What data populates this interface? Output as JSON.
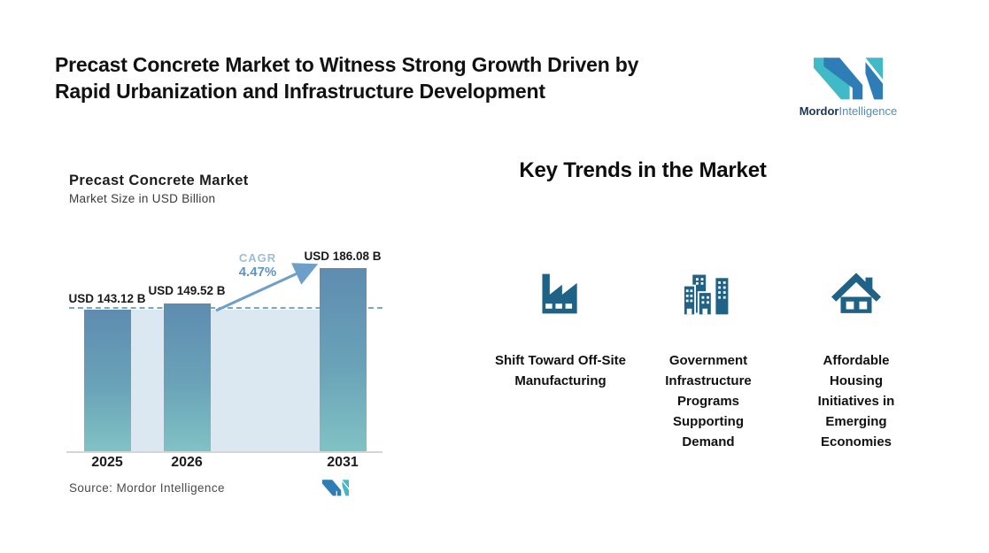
{
  "header": {
    "title_line1": "Precast Concrete Market to Witness Strong Growth Driven by",
    "title_line2": "Rapid Urbanization and Infrastructure Development",
    "brand_bold": "Mordor",
    "brand_light": "Intelligence"
  },
  "chart": {
    "title": "Precast Concrete Market",
    "subtitle": "Market Size in USD Billion",
    "cagr_label": "CAGR",
    "cagr_value": "4.47%",
    "source": "Source: Mordor Intelligence"
  },
  "chart_data": {
    "type": "bar",
    "title": "Precast Concrete Market",
    "subtitle": "Market Size in USD Billion",
    "categories": [
      "2025",
      "2026",
      "2031"
    ],
    "values": [
      143.12,
      149.52,
      186.08
    ],
    "series_labels": [
      "USD 143.12 B",
      "USD 149.52 B",
      "USD 186.08 B"
    ],
    "unit": "USD Billion",
    "cagr_percent": 4.47,
    "ylim": [
      0,
      200
    ],
    "grid": false,
    "legend": false,
    "annotations": [
      "CAGR 4.47% arrow from 2026 bar to 2031 bar",
      "dashed reference line at 2025 value"
    ]
  },
  "trends": {
    "heading": "Key Trends in the Market",
    "items": [
      {
        "icon": "factory-icon",
        "label": "Shift Toward Off-Site Manufacturing"
      },
      {
        "icon": "buildings-icon",
        "label": "Government Infrastructure Programs Supporting Demand"
      },
      {
        "icon": "house-icon",
        "label": "Affordable Housing Initiatives in Emerging Economies"
      }
    ]
  },
  "colors": {
    "icon": "#1f6285",
    "bar_top": "#5e8cb0",
    "bar_bottom": "#80c2c4",
    "band": "#dce8f1",
    "dashed_line": "#7aa6ca",
    "arrow": "#6d9fc9",
    "cagr_label": "#9cbddb",
    "cagr_value": "#5d94c6",
    "logo_blue": "#2e7db6",
    "logo_teal": "#41bac8"
  }
}
